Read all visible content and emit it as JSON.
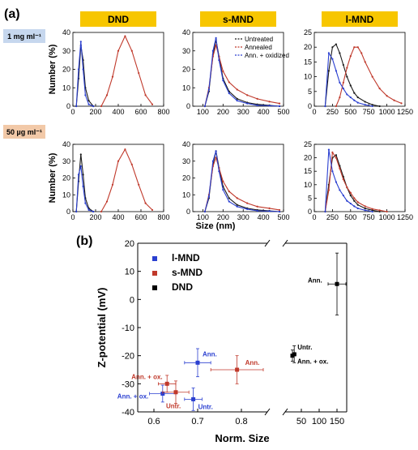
{
  "panel_a_label": "(a)",
  "panel_b_label": "(b)",
  "concentrations": [
    {
      "label": "1 mg ml⁻¹",
      "color": "#c6d7ee"
    },
    {
      "label": "50 µg ml⁻¹",
      "color": "#f2c9a8"
    }
  ],
  "column_titles": [
    "DND",
    "s-MND",
    "l-MND"
  ],
  "title_color": "#f7c600",
  "series_colors": {
    "Untreated": "#1a1a1a",
    "Annealed": "#c0392b",
    "Ann. + oxidized": "#2a3fd0"
  },
  "row_ylabel": "Number (%)",
  "bottom_xlabel": "Size (nm)",
  "legend": [
    "Untreated",
    "Annealed",
    "Ann. + oxidized"
  ],
  "chart_data": [
    {
      "type": "line",
      "row": 0,
      "col": 0,
      "xlim": [
        0,
        800
      ],
      "ylim": [
        0,
        40
      ],
      "xticks": [
        "0",
        "200",
        "400",
        "600",
        "800"
      ],
      "yticks": [
        "0",
        "10",
        "20",
        "30",
        "40"
      ],
      "series": [
        {
          "name": "Untreated",
          "x": [
            30,
            50,
            70,
            90,
            110,
            140,
            180
          ],
          "y": [
            0,
            15,
            33,
            25,
            10,
            3,
            0
          ]
        },
        {
          "name": "Annealed",
          "x": [
            250,
            300,
            350,
            400,
            460,
            520,
            580,
            640,
            700
          ],
          "y": [
            0,
            6,
            16,
            30,
            38,
            30,
            18,
            6,
            1
          ]
        },
        {
          "name": "Ann. + oxidized",
          "x": [
            30,
            50,
            70,
            90,
            110,
            140,
            180
          ],
          "y": [
            0,
            20,
            35,
            20,
            6,
            1,
            0
          ]
        }
      ]
    },
    {
      "type": "line",
      "row": 0,
      "col": 1,
      "xlim": [
        50,
        500
      ],
      "ylim": [
        0,
        40
      ],
      "xticks": [
        "100",
        "200",
        "300",
        "400",
        "500"
      ],
      "yticks": [
        "0",
        "10",
        "20",
        "30",
        "40"
      ],
      "series": [
        {
          "name": "Untreated",
          "x": [
            110,
            130,
            150,
            165,
            180,
            200,
            230,
            270,
            320,
            370,
            430,
            480
          ],
          "y": [
            0,
            8,
            28,
            36,
            27,
            15,
            8,
            4,
            2,
            1,
            0.5,
            0
          ]
        },
        {
          "name": "Annealed",
          "x": [
            110,
            130,
            150,
            165,
            180,
            200,
            230,
            270,
            320,
            370,
            430,
            480
          ],
          "y": [
            0,
            10,
            27,
            33,
            27,
            19,
            13,
            9,
            6,
            4,
            2.5,
            1.5
          ]
        },
        {
          "name": "Ann. + oxidized",
          "x": [
            110,
            130,
            150,
            165,
            180,
            200,
            230,
            270,
            320,
            370,
            430,
            480
          ],
          "y": [
            0,
            9,
            30,
            37,
            25,
            14,
            7,
            3,
            1.5,
            0.5,
            0.3,
            0
          ]
        }
      ]
    },
    {
      "type": "line",
      "row": 0,
      "col": 2,
      "xlim": [
        0,
        1250
      ],
      "ylim": [
        0,
        25
      ],
      "xticks": [
        "0",
        "250",
        "500",
        "750",
        "1000",
        "1250"
      ],
      "yticks": [
        "0",
        "5",
        "10",
        "15",
        "20",
        "25"
      ],
      "series": [
        {
          "name": "Untreated",
          "x": [
            150,
            200,
            250,
            300,
            350,
            400,
            450,
            500,
            550,
            600,
            700,
            800,
            900
          ],
          "y": [
            0,
            12,
            20,
            21,
            18,
            14,
            10,
            7,
            4.5,
            3,
            1.5,
            0.5,
            0
          ]
        },
        {
          "name": "Annealed",
          "x": [
            300,
            350,
            400,
            450,
            500,
            550,
            600,
            650,
            700,
            800,
            900,
            1000,
            1100,
            1200
          ],
          "y": [
            0,
            3,
            8,
            13,
            17,
            20,
            20,
            18,
            15,
            10,
            6,
            3.5,
            2,
            1
          ]
        },
        {
          "name": "Ann. + oxidized",
          "x": [
            150,
            200,
            250,
            300,
            350,
            400,
            450,
            500,
            550,
            600,
            700,
            800
          ],
          "y": [
            0,
            18,
            16,
            12,
            8,
            6,
            4,
            3,
            2,
            1.2,
            0.5,
            0
          ]
        }
      ]
    },
    {
      "type": "line",
      "row": 1,
      "col": 0,
      "xlim": [
        0,
        800
      ],
      "ylim": [
        0,
        40
      ],
      "xticks": [
        "0",
        "200",
        "400",
        "600",
        "800"
      ],
      "yticks": [
        "0",
        "10",
        "20",
        "30",
        "40"
      ],
      "series": [
        {
          "name": "Untreated",
          "x": [
            30,
            50,
            70,
            90,
            110,
            140,
            180
          ],
          "y": [
            0,
            18,
            34,
            22,
            8,
            2,
            0
          ]
        },
        {
          "name": "Annealed",
          "x": [
            250,
            300,
            350,
            400,
            460,
            520,
            580,
            640,
            700
          ],
          "y": [
            0,
            6,
            16,
            30,
            37,
            28,
            16,
            5,
            1
          ]
        },
        {
          "name": "Ann. + oxidized",
          "x": [
            30,
            50,
            70,
            90,
            110,
            140,
            180
          ],
          "y": [
            0,
            22,
            27,
            15,
            5,
            1,
            0
          ]
        }
      ]
    },
    {
      "type": "line",
      "row": 1,
      "col": 1,
      "xlim": [
        50,
        500
      ],
      "ylim": [
        0,
        40
      ],
      "xticks": [
        "100",
        "200",
        "300",
        "400",
        "500"
      ],
      "yticks": [
        "0",
        "10",
        "20",
        "30",
        "40"
      ],
      "series": [
        {
          "name": "Untreated",
          "x": [
            110,
            130,
            150,
            165,
            180,
            200,
            230,
            270,
            320,
            370,
            430,
            480
          ],
          "y": [
            0,
            8,
            28,
            36,
            26,
            15,
            8,
            4,
            2,
            1,
            0.5,
            0
          ]
        },
        {
          "name": "Annealed",
          "x": [
            110,
            130,
            150,
            165,
            180,
            200,
            230,
            270,
            320,
            370,
            430,
            480
          ],
          "y": [
            0,
            10,
            27,
            32,
            26,
            18,
            12,
            8,
            5,
            3,
            2,
            1
          ]
        },
        {
          "name": "Ann. + oxidized",
          "x": [
            110,
            130,
            150,
            165,
            180,
            200,
            230,
            270,
            320,
            370,
            430,
            480
          ],
          "y": [
            0,
            9,
            30,
            36,
            24,
            13,
            6,
            3,
            1.5,
            0.5,
            0.3,
            0
          ]
        }
      ]
    },
    {
      "type": "line",
      "row": 1,
      "col": 2,
      "xlim": [
        0,
        1250
      ],
      "ylim": [
        0,
        25
      ],
      "xticks": [
        "0",
        "250",
        "500",
        "750",
        "1000",
        "1250"
      ],
      "yticks": [
        "0",
        "5",
        "10",
        "15",
        "20",
        "25"
      ],
      "series": [
        {
          "name": "Untreated",
          "x": [
            150,
            200,
            250,
            300,
            350,
            400,
            450,
            500,
            550,
            600,
            700,
            800,
            900
          ],
          "y": [
            0,
            10,
            20,
            21,
            17,
            13,
            9,
            6,
            4,
            2.5,
            1.2,
            0.5,
            0
          ]
        },
        {
          "name": "Annealed",
          "x": [
            150,
            200,
            250,
            300,
            350,
            400,
            450,
            500,
            550,
            600,
            700,
            800,
            900,
            1000
          ],
          "y": [
            0,
            8,
            22,
            20,
            16,
            12,
            9,
            7,
            5,
            3.5,
            2,
            1,
            0.5,
            0
          ]
        },
        {
          "name": "Ann. + oxidized",
          "x": [
            150,
            200,
            250,
            300,
            350,
            400,
            450,
            500,
            550,
            600,
            700,
            800
          ],
          "y": [
            0,
            23,
            15,
            11,
            8,
            6,
            4,
            3,
            2,
            1.2,
            0.5,
            0
          ]
        }
      ]
    },
    {
      "type": "scatter",
      "ylabel": "Z-potential (mV)",
      "xlabel": "Norm. Size",
      "ylim": [
        -40,
        20
      ],
      "yticks": [
        "20",
        "10",
        "0",
        "-10",
        "-20",
        "-30",
        "-40"
      ],
      "xticks_left": [
        "0.6",
        "0.7",
        "0.8"
      ],
      "xticks_right": [
        "50",
        "100",
        "150"
      ],
      "legend": [
        {
          "name": "l-MND",
          "color": "#2a3fd0"
        },
        {
          "name": "s-MND",
          "color": "#c0392b"
        },
        {
          "name": "DND",
          "color": "#000000"
        }
      ],
      "points": [
        {
          "series": "l-MND",
          "x": 0.62,
          "y": -33.5,
          "xerr": 0.03,
          "yerr": 3,
          "label": "Ann. + ox."
        },
        {
          "series": "l-MND",
          "x": 0.69,
          "y": -35.5,
          "xerr": 0.02,
          "yerr": 4,
          "label": "Untr."
        },
        {
          "series": "l-MND",
          "x": 0.7,
          "y": -22.5,
          "xerr": 0.03,
          "yerr": 5,
          "label": "Ann."
        },
        {
          "series": "s-MND",
          "x": 0.63,
          "y": -30,
          "xerr": 0.02,
          "yerr": 3,
          "label": "Ann. + ox."
        },
        {
          "series": "s-MND",
          "x": 0.65,
          "y": -33,
          "xerr": 0.03,
          "yerr": 4,
          "label": "Untr."
        },
        {
          "series": "s-MND",
          "x": 0.79,
          "y": -25,
          "xerr": 0.06,
          "yerr": 5,
          "label": "Ann."
        },
        {
          "series": "DND",
          "x": 30,
          "y": -19.5,
          "xerr": 5,
          "yerr": 3,
          "label": "Untr."
        },
        {
          "series": "DND",
          "x": 25,
          "y": -20,
          "xerr": 3,
          "yerr": 2,
          "label": "Ann. + ox."
        },
        {
          "series": "DND",
          "x": 150,
          "y": 5.5,
          "xerr": 25,
          "yerr": 11,
          "label": "Ann."
        }
      ]
    }
  ]
}
